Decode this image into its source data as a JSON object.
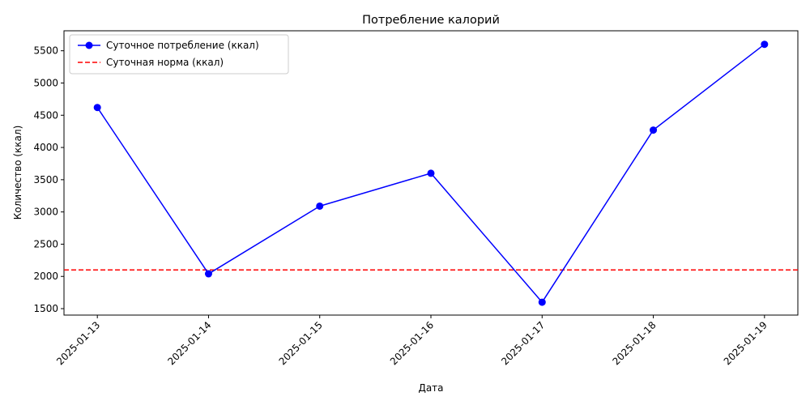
{
  "chart_data": {
    "type": "line",
    "title": "Потребление калорий",
    "xlabel": "Дата",
    "ylabel": "Количество (ккал)",
    "categories": [
      "2025-01-13",
      "2025-01-14",
      "2025-01-15",
      "2025-01-16",
      "2025-01-17",
      "2025-01-18",
      "2025-01-19"
    ],
    "series": [
      {
        "name": "Суточное потребление (ккал)",
        "values": [
          4620,
          2040,
          3090,
          3600,
          1600,
          4270,
          5600
        ],
        "color": "#0000ff",
        "style": "solid",
        "marker": "circle"
      }
    ],
    "reference_lines": [
      {
        "name": "Суточная норма (ккал)",
        "value": 2100,
        "color": "#ff0000",
        "style": "dashed"
      }
    ],
    "ylim": [
      1400,
      5810
    ],
    "yticks": [
      1500,
      2000,
      2500,
      3000,
      3500,
      4000,
      4500,
      5000,
      5500
    ],
    "grid": false,
    "legend_position": "top-left",
    "xtick_rotation": 45
  }
}
